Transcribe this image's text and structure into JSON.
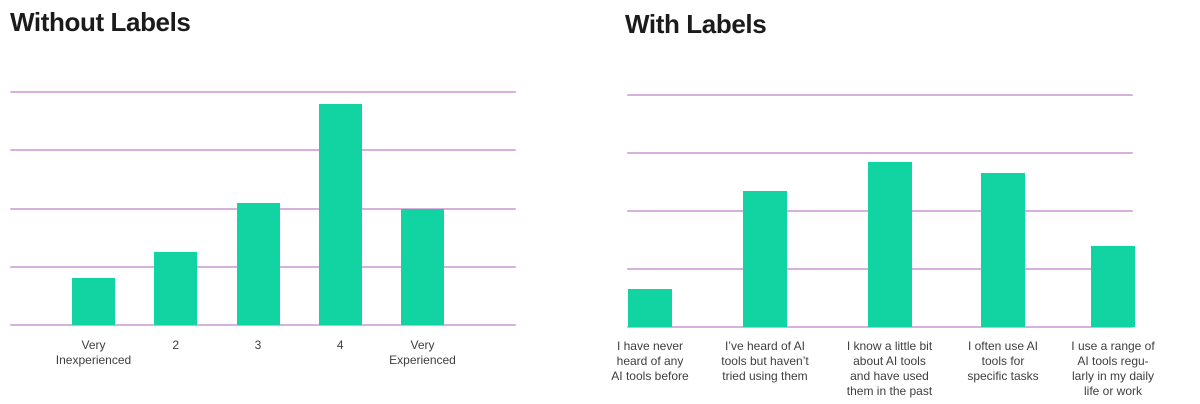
{
  "colors": {
    "background": "#ffffff",
    "bar": "#12d3a2",
    "gridline": "#d5a6dd",
    "title": "#1b1b1b",
    "axis_label": "#3e3e3e"
  },
  "chart_data": [
    {
      "type": "bar",
      "title": "Without Labels",
      "categories": [
        "Very\nInexperienced",
        "2",
        "3",
        "4",
        "Very\nExperienced"
      ],
      "values": [
        0.8,
        1.25,
        2.1,
        3.8,
        2.0
      ],
      "xlabel": "",
      "ylabel": "",
      "ylim": [
        0,
        4
      ],
      "gridline_values": [
        0,
        1,
        2,
        3,
        4
      ],
      "grid": "horizontal",
      "y_axis_tick_labels_visible": false,
      "legend": "none",
      "bar_color": "#12d3a2"
    },
    {
      "type": "bar",
      "title": "With Labels",
      "categories": [
        "I have never\nheard of any\nAI tools before",
        "I’ve heard of AI\ntools but haven’t\ntried using them",
        "I know a little bit\nabout AI tools\nand have used\nthem in the past",
        "I often use AI\ntools for\nspecific tasks",
        "I use a range of\nAI tools regu-\nlarly in my daily\nlife or work"
      ],
      "values": [
        0.65,
        2.35,
        2.85,
        2.65,
        1.4
      ],
      "xlabel": "",
      "ylabel": "",
      "ylim": [
        0,
        4
      ],
      "gridline_values": [
        0,
        1,
        2,
        3,
        4
      ],
      "grid": "horizontal",
      "y_axis_tick_labels_visible": false,
      "legend": "none",
      "bar_color": "#12d3a2"
    }
  ]
}
